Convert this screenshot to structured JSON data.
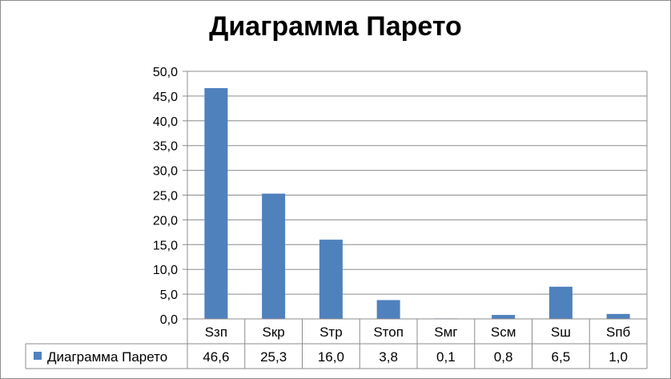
{
  "chart_data": {
    "type": "bar",
    "title": "Диаграмма Парето",
    "categories": [
      "Sзп",
      "Sкр",
      "Sтр",
      "Sтоп",
      "Sмг",
      "Sсм",
      "Sш",
      "Sпб"
    ],
    "series": [
      {
        "name": "Диаграмма Парето",
        "values": [
          46.6,
          25.3,
          16.0,
          3.8,
          0.1,
          0.8,
          6.5,
          1.0
        ],
        "color": "#4f81bd"
      }
    ],
    "value_labels": [
      "46,6",
      "25,3",
      "16,0",
      "3,8",
      "0,1",
      "0,8",
      "6,5",
      "1,0"
    ],
    "ylim": [
      0,
      50
    ],
    "y_ticks": [
      "0,0",
      "5,0",
      "10,0",
      "15,0",
      "20,0",
      "25,0",
      "30,0",
      "35,0",
      "40,0",
      "45,0",
      "50,0"
    ],
    "xlabel": "",
    "ylabel": "",
    "grid": true,
    "legend": "data-table"
  }
}
